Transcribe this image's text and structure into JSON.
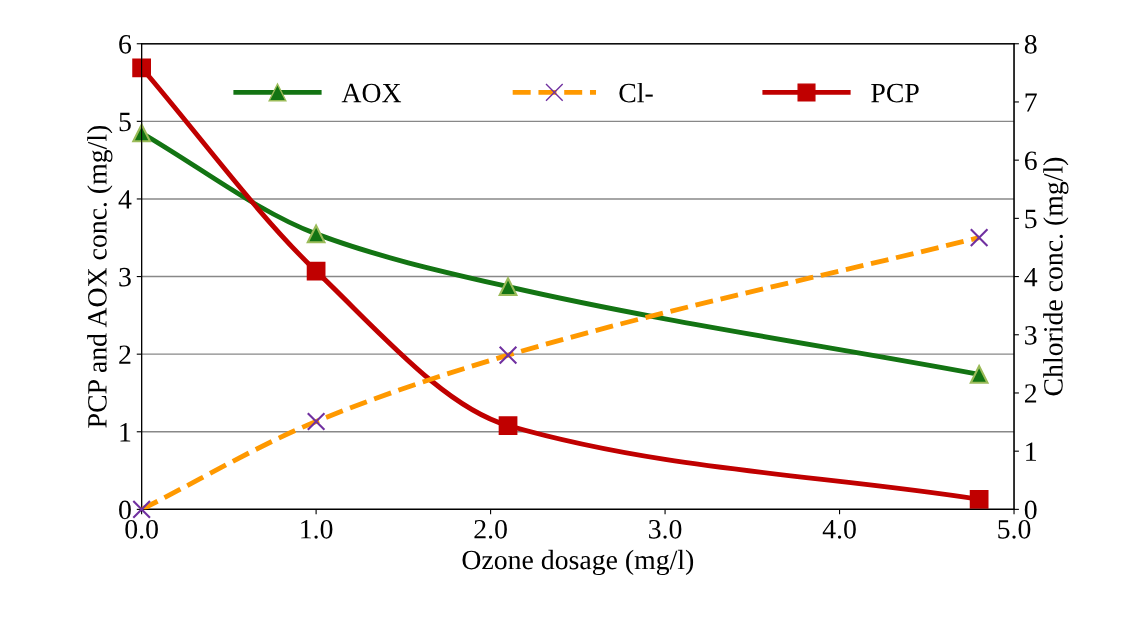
{
  "chart_data": {
    "type": "line",
    "xlabel": "Ozone dosage (mg/l)",
    "ylabel": "PCP and AOX conc. (mg/l)",
    "y2label": "Chloride conc. (mg/l)",
    "x": [
      0,
      1,
      2.1,
      4.8
    ],
    "series": [
      {
        "name": "AOX",
        "color": "#137413",
        "marker": "triangle",
        "line_style": "solid",
        "values": [
          4.85,
          3.55,
          2.87,
          1.74
        ]
      },
      {
        "name": "Cl-",
        "color": "#ff9900",
        "marker": "cross",
        "line_style": "dashed",
        "axis": "y2",
        "values": [
          0,
          1.51,
          2.65,
          4.67
        ]
      },
      {
        "name": "PCP",
        "color": "#c00000",
        "marker": "square",
        "line_style": "solid",
        "values": [
          5.69,
          3.07,
          1.08,
          0.13
        ]
      }
    ],
    "xlim": [
      0,
      5
    ],
    "xticks": [
      {
        "value": 0,
        "label": "0.0"
      },
      {
        "value": 1,
        "label": "1.0"
      },
      {
        "value": 2,
        "label": "2.0"
      },
      {
        "value": 3,
        "label": "3.0"
      },
      {
        "value": 4,
        "label": "4.0"
      },
      {
        "value": 5,
        "label": "5.0"
      }
    ],
    "ylim": [
      0,
      6
    ],
    "yticks": [
      0,
      1,
      2,
      3,
      4,
      5,
      6
    ],
    "y2lim": [
      0,
      8
    ],
    "y2ticks": [
      0,
      1,
      2,
      3,
      4,
      5,
      6,
      7,
      8
    ],
    "grid": "y",
    "legend": "top"
  }
}
